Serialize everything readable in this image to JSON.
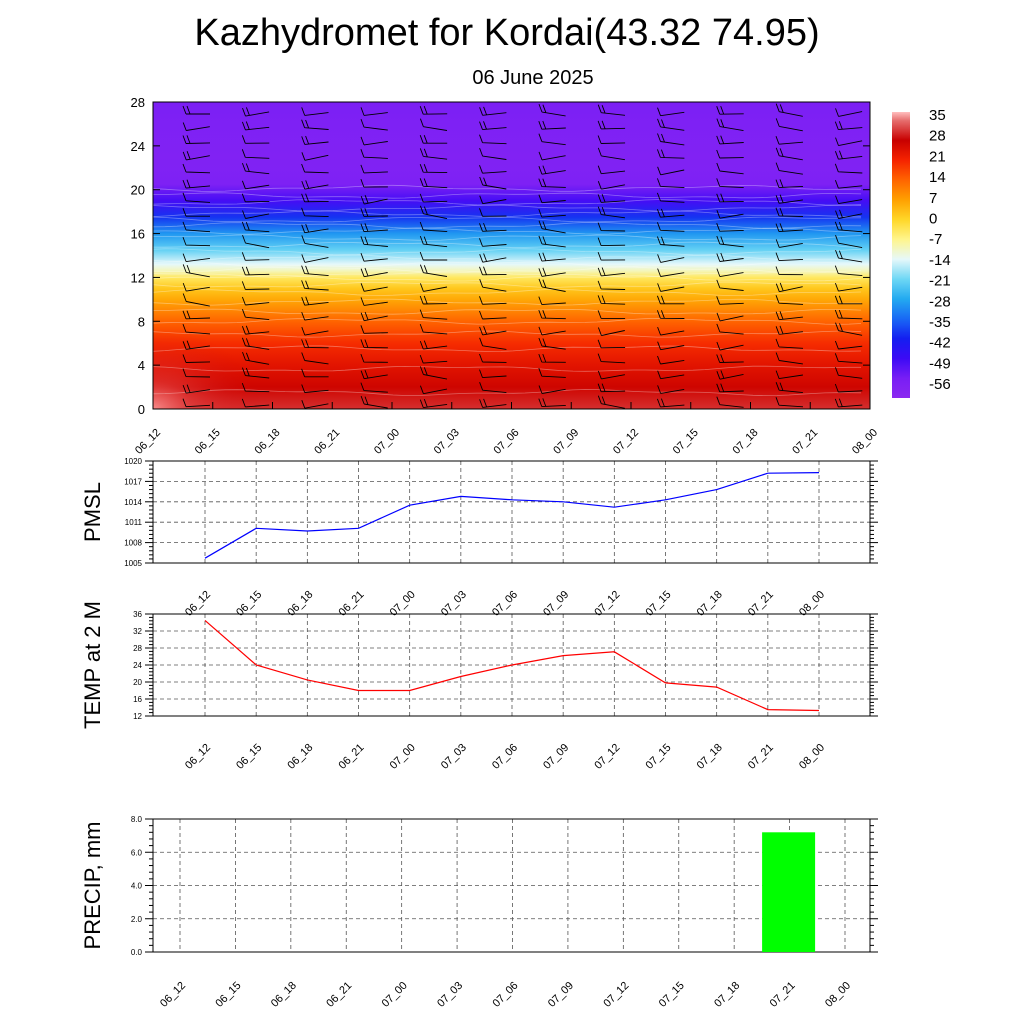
{
  "title": "Kazhydromet for Kordai(43.32 74.95)",
  "subtitle": "06 June 2025",
  "time_labels": [
    "06_12",
    "06_15",
    "06_18",
    "06_21",
    "07_00",
    "07_03",
    "07_06",
    "07_09",
    "07_12",
    "07_15",
    "07_18",
    "07_21",
    "08_00"
  ],
  "colors": {
    "pmsl_line": "#0000ff",
    "temp_line": "#ff0000",
    "precip_bar": "#00ff00",
    "wind_barb": "#000000"
  },
  "chart_data": [
    {
      "id": "cross-section",
      "type": "heatmap",
      "title": "",
      "xlabel": "",
      "ylabel": "",
      "x": [
        "06_12",
        "06_15",
        "06_18",
        "06_21",
        "07_00",
        "07_03",
        "07_06",
        "07_09",
        "07_12",
        "07_15",
        "07_18",
        "07_21",
        "08_00"
      ],
      "yticks": [
        0,
        4,
        8,
        12,
        16,
        20,
        24,
        28
      ],
      "ylim": [
        0,
        28
      ],
      "colorbar_labels": [
        "35",
        "28",
        "21",
        "14",
        "7",
        "0",
        "-7",
        "-14",
        "-21",
        "-28",
        "-35",
        "-42",
        "-49",
        "-56"
      ],
      "colorbar_range": [
        -63,
        38
      ],
      "temperature_profile": [
        [
          0,
          31
        ],
        [
          2,
          27
        ],
        [
          4,
          24
        ],
        [
          6,
          20
        ],
        [
          8,
          14
        ],
        [
          10,
          6
        ],
        [
          11,
          2
        ],
        [
          12,
          -4
        ],
        [
          12.6,
          -10
        ],
        [
          13.2,
          -14
        ],
        [
          14.5,
          -22
        ],
        [
          16,
          -30
        ],
        [
          17.5,
          -40
        ],
        [
          19,
          -50
        ],
        [
          20.5,
          -58
        ],
        [
          23,
          -59
        ],
        [
          26,
          -58
        ],
        [
          28,
          -57
        ]
      ],
      "surface_max": 35,
      "wind_barbs": "shown"
    },
    {
      "id": "pmsl",
      "type": "line",
      "ylabel": "PMSL",
      "x": [
        "06_12",
        "06_15",
        "06_18",
        "06_21",
        "07_00",
        "07_03",
        "07_06",
        "07_09",
        "07_12",
        "07_15",
        "07_18",
        "07_21",
        "08_00"
      ],
      "yticks": [
        1005,
        1008,
        1011,
        1014,
        1017,
        1020
      ],
      "ylim": [
        1005,
        1020
      ],
      "grid": true,
      "series": [
        {
          "values": [
            1005.7,
            1010.1,
            1009.7,
            1010.1,
            1013.5,
            1014.8,
            1014.3,
            1014.0,
            1013.2,
            1014.3,
            1015.8,
            1018.2,
            1018.3
          ]
        }
      ]
    },
    {
      "id": "temp2m",
      "type": "line",
      "ylabel": "TEMP at 2 M",
      "x": [
        "06_12",
        "06_15",
        "06_18",
        "06_21",
        "07_00",
        "07_03",
        "07_06",
        "07_09",
        "07_12",
        "07_15",
        "07_18",
        "07_21",
        "08_00"
      ],
      "yticks": [
        12,
        16,
        20,
        24,
        28,
        32,
        36
      ],
      "ylim": [
        12,
        36
      ],
      "grid": true,
      "series": [
        {
          "values": [
            34.5,
            24.0,
            20.5,
            18.0,
            18.0,
            21.3,
            24.0,
            26.2,
            27.1,
            19.8,
            18.8,
            13.5,
            13.3
          ]
        }
      ]
    },
    {
      "id": "precip",
      "type": "bar",
      "ylabel": "PRECIP, mm",
      "categories": [
        "06_12",
        "06_15",
        "06_18",
        "06_21",
        "07_00",
        "07_03",
        "07_06",
        "07_09",
        "07_12",
        "07_15",
        "07_18",
        "07_21",
        "08_00"
      ],
      "values": [
        0,
        0,
        0,
        0,
        0,
        0,
        0,
        0,
        0,
        0,
        0,
        7.2,
        0
      ],
      "yticks": [
        "0.0",
        "2.0",
        "4.0",
        "6.0",
        "8.0"
      ],
      "ylim": [
        0,
        8
      ],
      "grid": true
    }
  ]
}
